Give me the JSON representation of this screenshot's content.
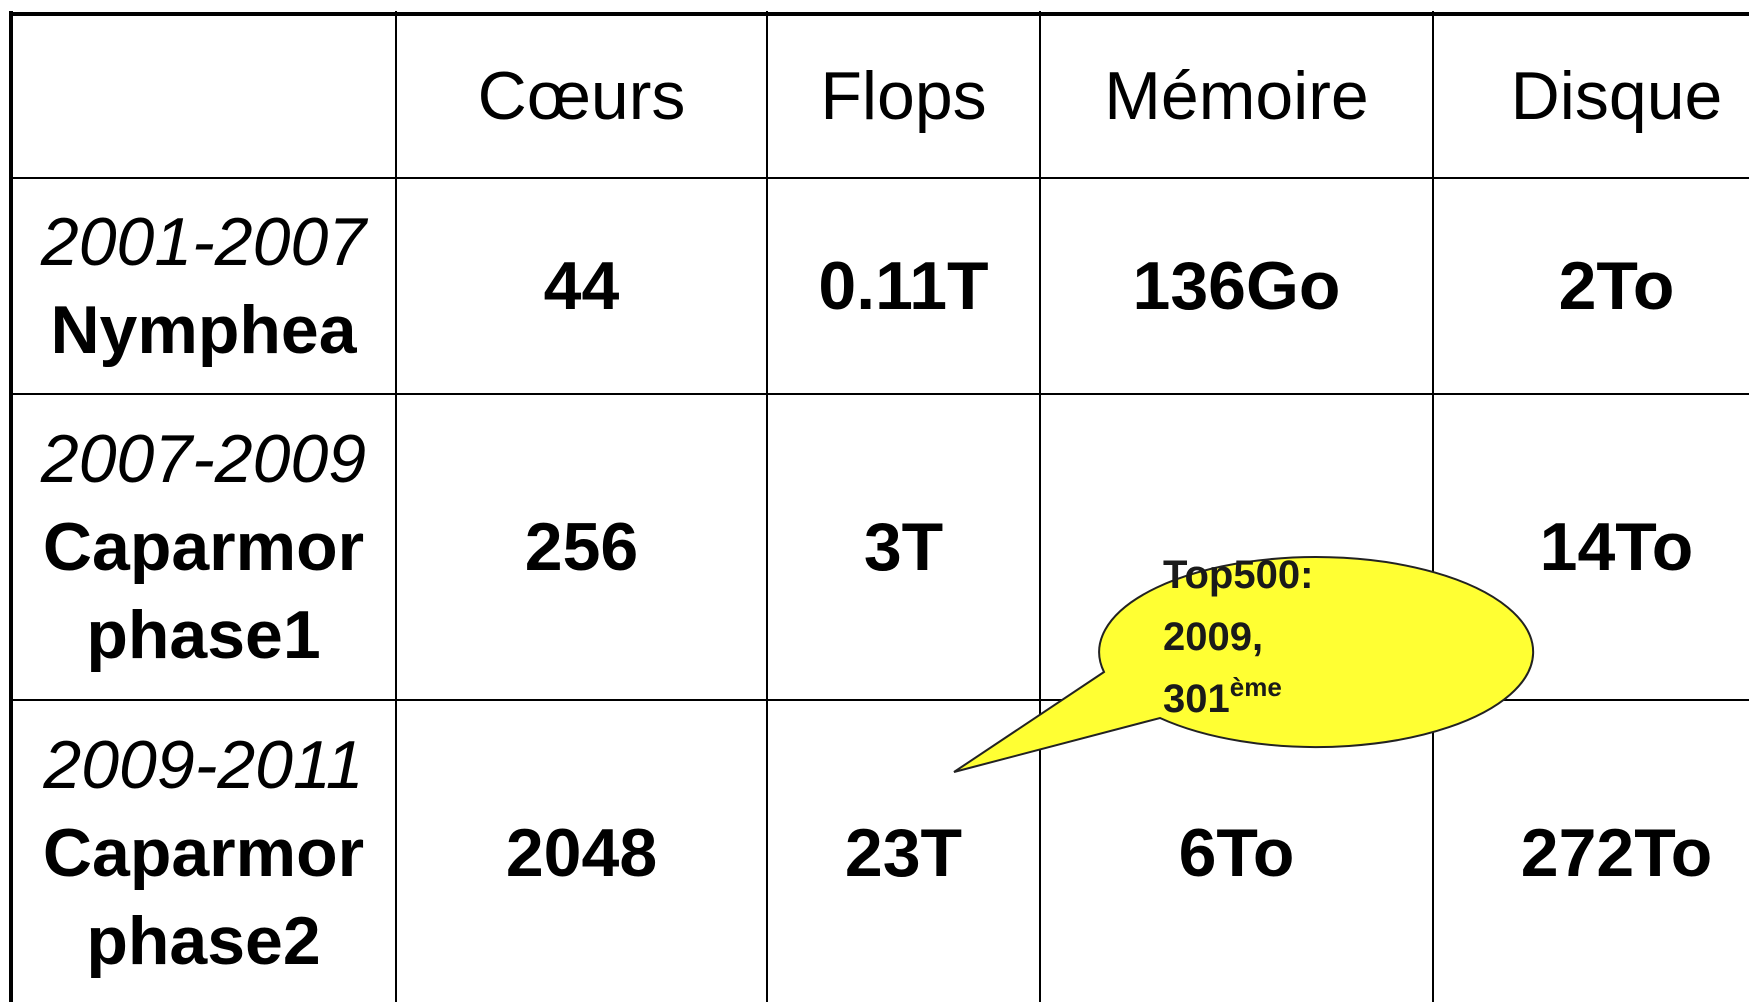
{
  "table": {
    "columns": [
      "Cœurs",
      "Flops",
      "Mémoire",
      "Disque"
    ],
    "rows": [
      {
        "period": "2001-2007",
        "name": "Nymphea",
        "values": [
          "44",
          "0.11T",
          "136Go",
          "2To"
        ]
      },
      {
        "period": "2007-2009",
        "name": "Caparmor phase1",
        "values": [
          "256",
          "3T",
          null,
          "14To"
        ]
      },
      {
        "period": "2009-2011",
        "name": "Caparmor phase2",
        "values": [
          "2048",
          "23T",
          "6To",
          "272To"
        ]
      }
    ]
  },
  "callout": {
    "lines": [
      "Top500:",
      "2009,"
    ],
    "rank": "301",
    "suffix": "ème"
  }
}
